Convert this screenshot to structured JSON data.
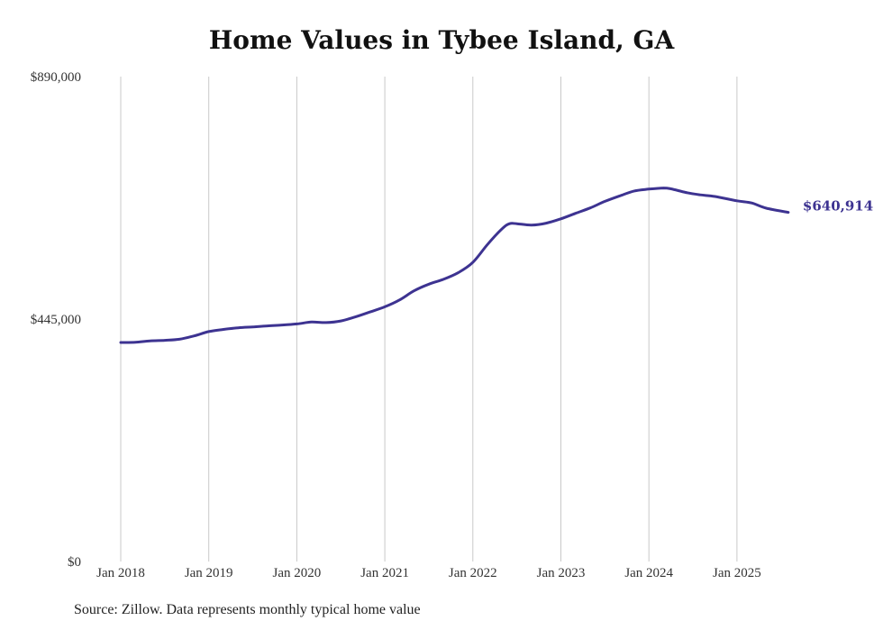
{
  "chart_data": {
    "type": "line",
    "title": "Home Values in Tybee Island, GA",
    "source": "Source: Zillow. Data represents monthly typical home value",
    "ylim": [
      0,
      890000
    ],
    "y_ticks": [
      "$0",
      "$445,000",
      "$890,000"
    ],
    "y_tick_values": [
      0,
      445000,
      890000
    ],
    "x_ticks": [
      "Jan 2018",
      "Jan 2019",
      "Jan 2020",
      "Jan 2021",
      "Jan 2022",
      "Jan 2023",
      "Jan 2024",
      "Jan 2025"
    ],
    "x_tick_dates": [
      "2018-01",
      "2019-01",
      "2020-01",
      "2021-01",
      "2022-01",
      "2023-01",
      "2024-01",
      "2025-01"
    ],
    "grid": "vertical",
    "line_color": "#3d3391",
    "end_label": "$640,914",
    "series": [
      {
        "x": [
          "2018-01",
          "2018-03",
          "2018-05",
          "2018-07",
          "2018-09",
          "2018-11",
          "2019-01",
          "2019-03",
          "2019-05",
          "2019-07",
          "2019-09",
          "2019-11",
          "2020-01",
          "2020-03",
          "2020-05",
          "2020-07",
          "2020-09",
          "2020-11",
          "2021-01",
          "2021-03",
          "2021-05",
          "2021-07",
          "2021-09",
          "2021-11",
          "2022-01",
          "2022-03",
          "2022-05",
          "2022-06",
          "2022-07",
          "2022-09",
          "2022-11",
          "2023-01",
          "2023-03",
          "2023-05",
          "2023-07",
          "2023-09",
          "2023-11",
          "2024-01",
          "2024-03",
          "2024-04",
          "2024-06",
          "2024-08",
          "2024-10",
          "2025-01",
          "2025-03",
          "2025-05",
          "2025-08"
        ],
        "y": [
          402000,
          402500,
          405000,
          406000,
          408000,
          414000,
          422000,
          426000,
          429000,
          430500,
          432500,
          434000,
          436000,
          439500,
          438500,
          441500,
          449000,
          458000,
          467500,
          480000,
          497000,
          509000,
          518000,
          530000,
          549000,
          582000,
          611000,
          620000,
          620000,
          617500,
          621000,
          629000,
          639000,
          649000,
          661000,
          671000,
          680000,
          683500,
          685500,
          684000,
          677500,
          673000,
          670000,
          662000,
          658000,
          648500,
          640914
        ]
      }
    ]
  }
}
